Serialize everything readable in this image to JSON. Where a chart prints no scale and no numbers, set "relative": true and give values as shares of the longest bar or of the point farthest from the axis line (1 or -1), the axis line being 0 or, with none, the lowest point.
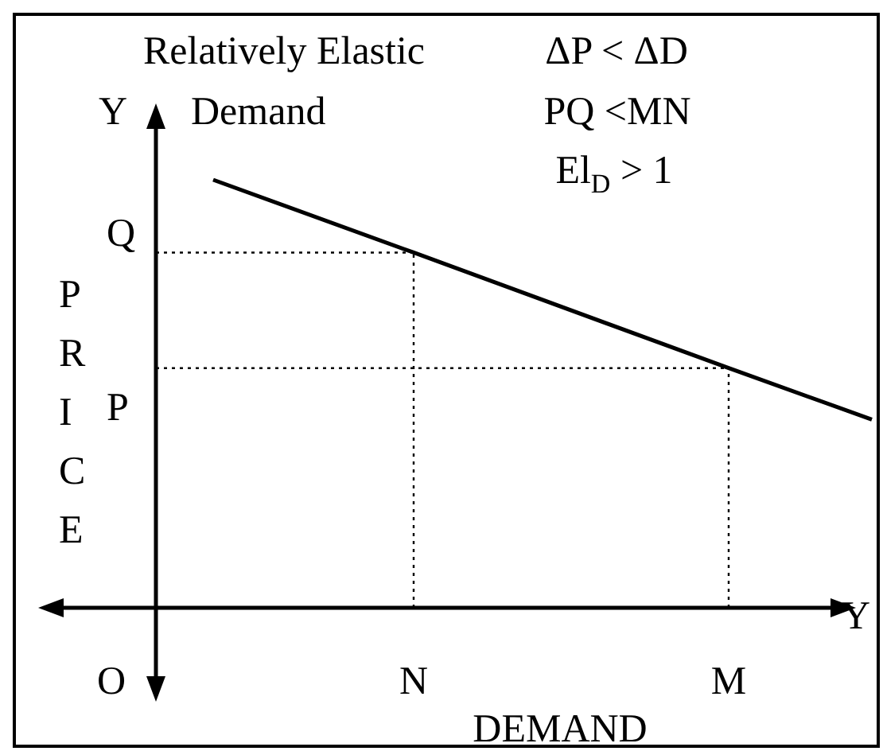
{
  "chart_data": {
    "type": "line",
    "title": "Relatively Elastic Demand",
    "xlabel": "DEMAND",
    "ylabel": "PRICE",
    "relative": true,
    "grid": false,
    "legend": false,
    "marker": "none",
    "line_style": "solid",
    "categories": [
      null,
      null,
      null,
      null,
      null,
      null,
      null,
      null,
      null,
      "N",
      null,
      null,
      null,
      null,
      null,
      null,
      null,
      null,
      null,
      null,
      "M",
      null,
      null,
      null,
      null,
      null
    ],
    "series": [
      {
        "color": "#000000",
        "values": [
          null,
          null,
          1,
          null,
          null,
          null,
          null,
          null,
          null,
          0.83,
          null,
          null,
          null,
          null,
          null,
          null,
          null,
          null,
          null,
          null,
          0.56,
          null,
          null,
          null,
          null,
          0.44
        ]
      }
    ],
    "ref_lines": [
      {
        "axis": "y",
        "value": 0.83,
        "label": "Q",
        "line_style": "dotted",
        "color": "#000000"
      },
      {
        "axis": "y",
        "value": 0.56,
        "line_style": "dotted",
        "color": "#000000"
      },
      {
        "axis": "x",
        "value": "N",
        "line_style": "dotted",
        "color": "#000000"
      },
      {
        "axis": "x",
        "value": "M",
        "line_style": "dotted",
        "color": "#000000"
      }
    ],
    "annotations": [
      "ΔP < ΔD",
      "PQ <MN",
      "El$_{D}$ > 1",
      "Y",
      "Y",
      "O",
      "P"
    ]
  }
}
